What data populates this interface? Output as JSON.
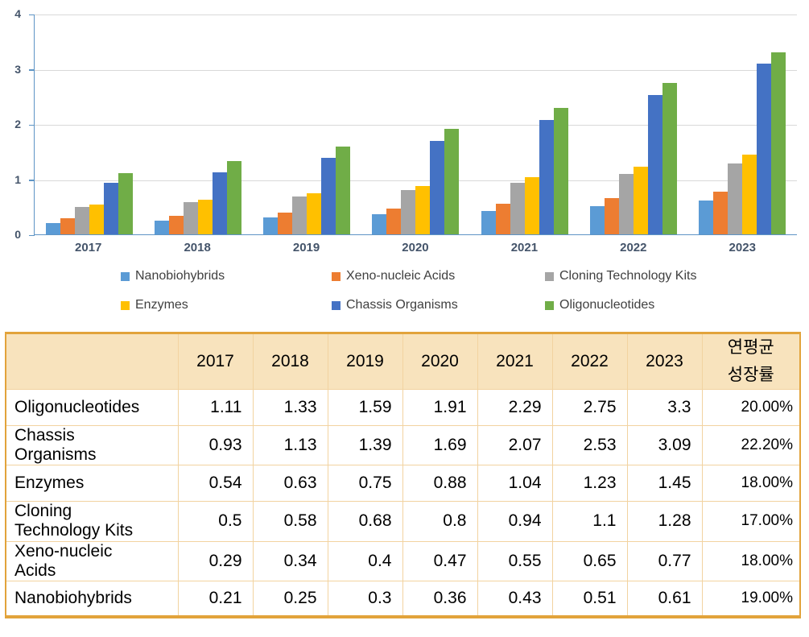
{
  "chart_data": {
    "type": "bar",
    "title": "",
    "xlabel": "",
    "ylabel": "",
    "grid": true,
    "legend_position": "bottom",
    "y_axis": {
      "min": 0,
      "max": 4,
      "tick_step": 1,
      "ticks": [
        0,
        1,
        2,
        3,
        4
      ]
    },
    "categories": [
      "2017",
      "2018",
      "2019",
      "2020",
      "2021",
      "2022",
      "2023"
    ],
    "series": [
      {
        "name": "Nanobiohybrids",
        "color": "#5B9BD5",
        "values": [
          0.21,
          0.25,
          0.3,
          0.36,
          0.43,
          0.51,
          0.61
        ]
      },
      {
        "name": "Xeno-nucleic Acids",
        "color": "#ED7D31",
        "values": [
          0.29,
          0.34,
          0.4,
          0.47,
          0.55,
          0.65,
          0.77
        ]
      },
      {
        "name": "Cloning Technology Kits",
        "color": "#A5A5A5",
        "values": [
          0.5,
          0.58,
          0.68,
          0.8,
          0.94,
          1.1,
          1.28
        ]
      },
      {
        "name": "Enzymes",
        "color": "#FFC000",
        "values": [
          0.54,
          0.63,
          0.75,
          0.88,
          1.04,
          1.23,
          1.45
        ]
      },
      {
        "name": "Chassis Organisms",
        "color": "#4472C4",
        "values": [
          0.93,
          1.13,
          1.39,
          1.69,
          2.07,
          2.53,
          3.09
        ]
      },
      {
        "name": "Oligonucleotides",
        "color": "#70AD47",
        "values": [
          1.11,
          1.33,
          1.59,
          1.91,
          2.29,
          2.75,
          3.3
        ]
      }
    ],
    "colors": {
      "gridline": "#D9D9D9",
      "axis_line": "#5E94C5",
      "tick_label": "#44546A",
      "legend_text": "#404040"
    }
  },
  "table": {
    "header": [
      "",
      "2017",
      "2018",
      "2019",
      "2020",
      "2021",
      "2022",
      "2023",
      "연평균\n성장률"
    ],
    "rows": [
      {
        "label": "Oligonucleotides",
        "values": [
          "1.11",
          "1.33",
          "1.59",
          "1.91",
          "2.29",
          "2.75",
          "3.3"
        ],
        "cagr": "20.00%"
      },
      {
        "label": "Chassis\nOrganisms",
        "values": [
          "0.93",
          "1.13",
          "1.39",
          "1.69",
          "2.07",
          "2.53",
          "3.09"
        ],
        "cagr": "22.20%"
      },
      {
        "label": "Enzymes",
        "values": [
          "0.54",
          "0.63",
          "0.75",
          "0.88",
          "1.04",
          "1.23",
          "1.45"
        ],
        "cagr": "18.00%"
      },
      {
        "label": "Cloning\nTechnology Kits",
        "values": [
          "0.5",
          "0.58",
          "0.68",
          "0.8",
          "0.94",
          "1.1",
          "1.28"
        ],
        "cagr": "17.00%"
      },
      {
        "label": "Xeno-nucleic\nAcids",
        "values": [
          "0.29",
          "0.34",
          "0.4",
          "0.47",
          "0.55",
          "0.65",
          "0.77"
        ],
        "cagr": "18.00%"
      },
      {
        "label": "Nanobiohybrids",
        "values": [
          "0.21",
          "0.25",
          "0.3",
          "0.36",
          "0.43",
          "0.51",
          "0.61"
        ],
        "cagr": "19.00%"
      }
    ],
    "colors": {
      "outer_border": "#E2A33B",
      "inner_line": "#F2D3A0",
      "header_bg": "#F8E3BD"
    }
  }
}
